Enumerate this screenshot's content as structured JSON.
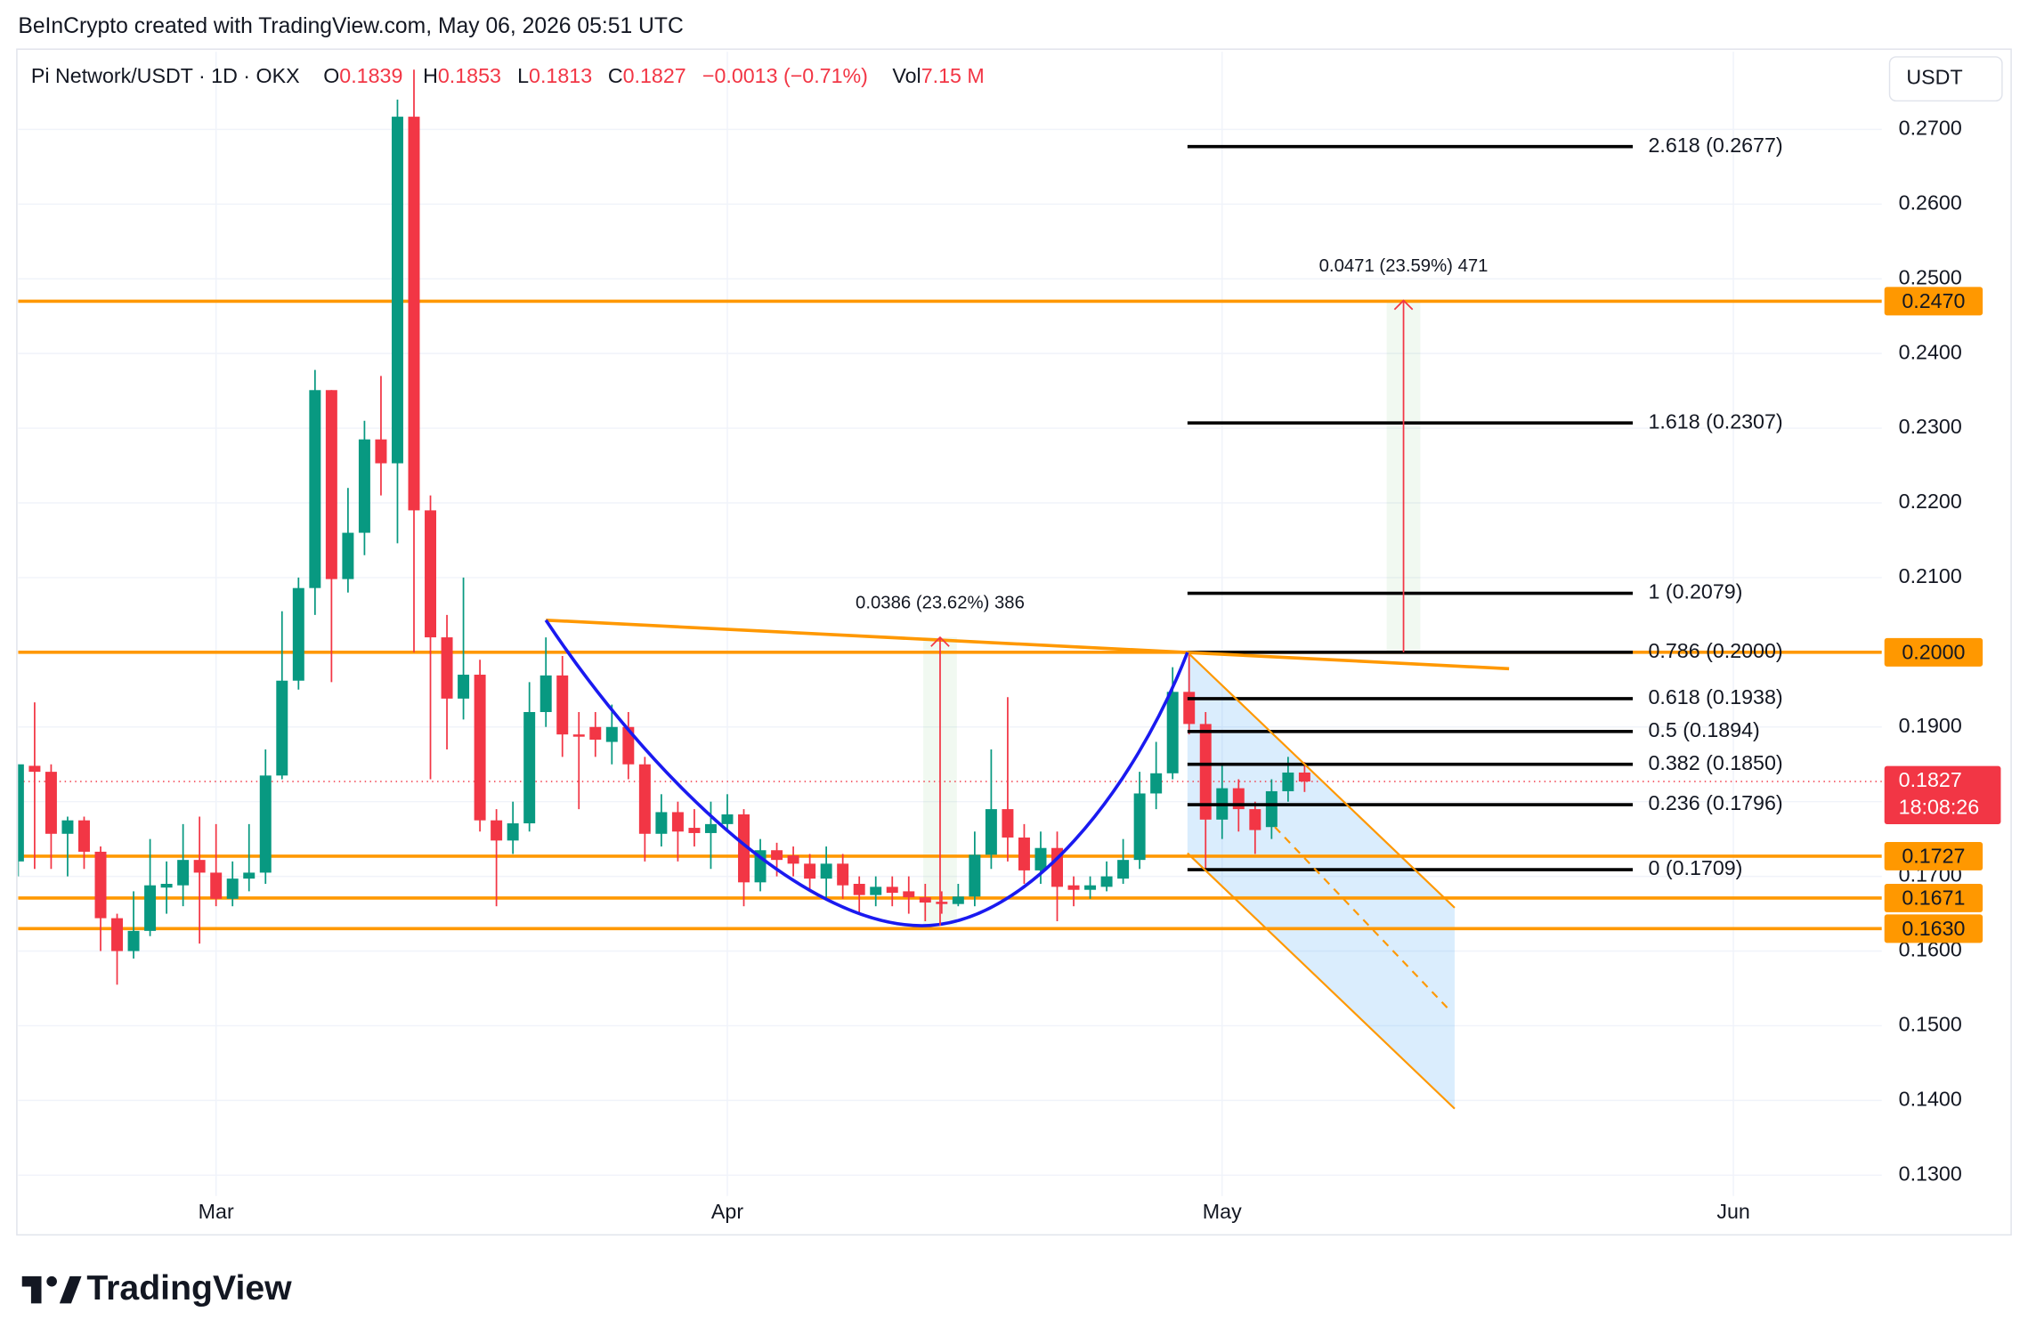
{
  "header": {
    "credit": "BeInCrypto created with TradingView.com, May 06, 2026 05:51 UTC",
    "currency_button": "USDT"
  },
  "legend": {
    "symbol": "Pi Network/USDT · 1D · OKX",
    "ohlc": [
      {
        "key": "O",
        "value": "0.1839"
      },
      {
        "key": "H",
        "value": "0.1853"
      },
      {
        "key": "L",
        "value": "0.1813"
      },
      {
        "key": "C",
        "value": "0.1827"
      }
    ],
    "change": "−0.0013 (−0.71%)",
    "vol_key": "Vol",
    "vol": "7.15 M"
  },
  "footer": {
    "brand": "TradingView"
  },
  "chart_data": {
    "type": "candlestick",
    "up_color": "#089981",
    "down_color": "#f23645",
    "open": [
      0.172,
      0.1848,
      0.184,
      0.1757,
      0.1775,
      0.1733,
      0.1644,
      0.16,
      0.1627,
      0.1685,
      0.1688,
      0.1722,
      0.1705,
      0.167,
      0.1697,
      0.1705,
      0.1835,
      0.1962,
      0.2086,
      0.2351,
      0.2098,
      0.216,
      0.2285,
      0.2253,
      0.2717,
      0.219,
      0.202,
      0.1938,
      0.197,
      0.1775,
      0.1748,
      0.1771,
      0.192,
      0.1969,
      0.189,
      0.19,
      0.188,
      0.19,
      0.185,
      0.1757,
      0.1786,
      0.1765,
      0.1758,
      0.177,
      0.1783,
      0.1692,
      0.1735,
      0.1728,
      0.1717,
      0.1697,
      0.1717,
      0.169,
      0.1675,
      0.1686,
      0.168,
      0.1672,
      0.1666,
      0.1663,
      0.1673,
      0.1729,
      0.179,
      0.1752,
      0.1708,
      0.1738,
      0.1688,
      0.1682,
      0.1686,
      0.1697,
      0.1722,
      0.1811,
      0.1838,
      0.1947,
      0.1904,
      0.1776,
      0.1818,
      0.179,
      0.1766,
      0.1814,
      0.1839
    ],
    "high": [
      0.185,
      0.1933,
      0.185,
      0.178,
      0.178,
      0.174,
      0.165,
      0.168,
      0.175,
      0.172,
      0.177,
      0.178,
      0.177,
      0.172,
      0.177,
      0.187,
      0.2055,
      0.21,
      0.2378,
      0.2351,
      0.222,
      0.231,
      0.237,
      0.274,
      0.278,
      0.221,
      0.205,
      0.21,
      0.199,
      0.179,
      0.18,
      0.196,
      0.202,
      0.1995,
      0.192,
      0.192,
      0.193,
      0.192,
      0.186,
      0.181,
      0.18,
      0.179,
      0.18,
      0.181,
      0.179,
      0.175,
      0.1745,
      0.174,
      0.173,
      0.174,
      0.173,
      0.17,
      0.17,
      0.17,
      0.17,
      0.169,
      0.168,
      0.169,
      0.176,
      0.187,
      0.194,
      0.177,
      0.176,
      0.176,
      0.17,
      0.17,
      0.172,
      0.175,
      0.184,
      0.188,
      0.198,
      0.2,
      0.192,
      0.185,
      0.183,
      0.18,
      0.183,
      0.186,
      0.1853
    ],
    "low": [
      0.17,
      0.171,
      0.171,
      0.17,
      0.171,
      0.16,
      0.1555,
      0.159,
      0.162,
      0.165,
      0.166,
      0.161,
      0.166,
      0.166,
      0.168,
      0.169,
      0.183,
      0.195,
      0.205,
      0.196,
      0.208,
      0.213,
      0.221,
      0.2146,
      0.2,
      0.183,
      0.187,
      0.191,
      0.176,
      0.166,
      0.173,
      0.176,
      0.19,
      0.186,
      0.179,
      0.186,
      0.185,
      0.183,
      0.172,
      0.174,
      0.172,
      0.174,
      0.171,
      0.176,
      0.166,
      0.168,
      0.17,
      0.17,
      0.168,
      0.167,
      0.167,
      0.165,
      0.166,
      0.166,
      0.165,
      0.164,
      0.165,
      0.166,
      0.166,
      0.171,
      0.172,
      0.169,
      0.169,
      0.164,
      0.166,
      0.167,
      0.168,
      0.169,
      0.171,
      0.179,
      0.183,
      0.189,
      0.171,
      0.175,
      0.176,
      0.173,
      0.175,
      0.18,
      0.1813
    ],
    "close": [
      0.185,
      0.184,
      0.1757,
      0.1775,
      0.1733,
      0.1644,
      0.16,
      0.1627,
      0.1688,
      0.169,
      0.1722,
      0.1705,
      0.167,
      0.1697,
      0.1705,
      0.1835,
      0.1962,
      0.2086,
      0.2351,
      0.2098,
      0.216,
      0.2285,
      0.2253,
      0.2717,
      0.219,
      0.202,
      0.1938,
      0.197,
      0.1775,
      0.1748,
      0.1771,
      0.192,
      0.1969,
      0.189,
      0.1887,
      0.1883,
      0.19,
      0.185,
      0.1757,
      0.1786,
      0.176,
      0.1758,
      0.177,
      0.1783,
      0.1692,
      0.1735,
      0.1722,
      0.1717,
      0.1697,
      0.1717,
      0.1688,
      0.1675,
      0.1686,
      0.1678,
      0.1672,
      0.1665,
      0.1663,
      0.1673,
      0.1729,
      0.179,
      0.1752,
      0.1708,
      0.1738,
      0.1686,
      0.1682,
      0.1688,
      0.17,
      0.1722,
      0.1811,
      0.1838,
      0.1947,
      0.1904,
      0.1776,
      0.1818,
      0.179,
      0.1762,
      0.1814,
      0.1839,
      0.1827
    ],
    "xlim": [
      0,
      113
    ],
    "xticks": [
      {
        "value": 12,
        "label": "Mar"
      },
      {
        "value": 43,
        "label": "Apr"
      },
      {
        "value": 73,
        "label": "May"
      },
      {
        "value": 104,
        "label": "Jun"
      }
    ],
    "ylim": [
      0.1272,
      0.2804
    ],
    "yticks": [
      {
        "value": 0.13,
        "label": "0.1300"
      },
      {
        "value": 0.14,
        "label": "0.1400"
      },
      {
        "value": 0.15,
        "label": "0.1500"
      },
      {
        "value": 0.16,
        "label": "0.1600"
      },
      {
        "value": 0.17,
        "label": "0.1700"
      },
      {
        "value": 0.18,
        "label": "0.1800"
      },
      {
        "value": 0.19,
        "label": "0.1900"
      },
      {
        "value": 0.2,
        "label": "0.2000"
      },
      {
        "value": 0.21,
        "label": "0.2100"
      },
      {
        "value": 0.22,
        "label": "0.2200"
      },
      {
        "value": 0.23,
        "label": "0.2300"
      },
      {
        "value": 0.24,
        "label": "0.2400"
      },
      {
        "value": 0.25,
        "label": "0.2500"
      },
      {
        "value": 0.26,
        "label": "0.2600"
      },
      {
        "value": 0.27,
        "label": "0.2700"
      }
    ],
    "grid": true,
    "levels": [
      {
        "value": 0.247,
        "label": "0.2470"
      },
      {
        "value": 0.2,
        "label": "0.2000"
      },
      {
        "value": 0.1727,
        "label": "0.1727"
      },
      {
        "value": 0.1671,
        "label": "0.1671"
      },
      {
        "value": 0.163,
        "label": "0.1630"
      }
    ],
    "level_color": "#ff9800",
    "last_price": {
      "value": 0.1827,
      "label": "0.1827",
      "countdown": "18:08:26"
    },
    "fib_range": [
      70.9,
      97.9
    ],
    "fib_levels": [
      {
        "value": 0.2677,
        "label": "2.618 (0.2677)"
      },
      {
        "value": 0.2307,
        "label": "1.618 (0.2307)"
      },
      {
        "value": 0.2079,
        "label": "1 (0.2079)"
      },
      {
        "value": 0.2,
        "label": "0.786 (0.2000)"
      },
      {
        "value": 0.1938,
        "label": "0.618 (0.1938)"
      },
      {
        "value": 0.1894,
        "label": "0.5 (0.1894)"
      },
      {
        "value": 0.185,
        "label": "0.382 (0.1850)"
      },
      {
        "value": 0.1796,
        "label": "0.236 (0.1796)"
      },
      {
        "value": 0.1709,
        "label": "0 (0.1709)"
      }
    ],
    "measures": [
      {
        "x": 55.9,
        "from": 0.1634,
        "to": 0.202,
        "label": "0.0386 (23.62%) 386"
      },
      {
        "x": 84,
        "from": 0.2,
        "to": 0.2471,
        "label": "0.0471 (23.59%) 471"
      }
    ],
    "drawings": {
      "trendline": [
        [
          32,
          0.2043
        ],
        [
          90.4,
          0.1978
        ]
      ],
      "cup": [
        [
          32,
          0.2043
        ],
        [
          54.8,
          0.1634
        ],
        [
          70.9,
          0.2
        ]
      ],
      "channel_upper": [
        [
          70.9,
          0.2
        ],
        [
          87.1,
          0.1658
        ]
      ],
      "channel_lower": [
        [
          70.9,
          0.1731
        ],
        [
          87.1,
          0.1389
        ]
      ],
      "channel_mid": [
        [
          76.2,
          0.1766
        ],
        [
          86.7,
          0.1523
        ]
      ]
    }
  }
}
